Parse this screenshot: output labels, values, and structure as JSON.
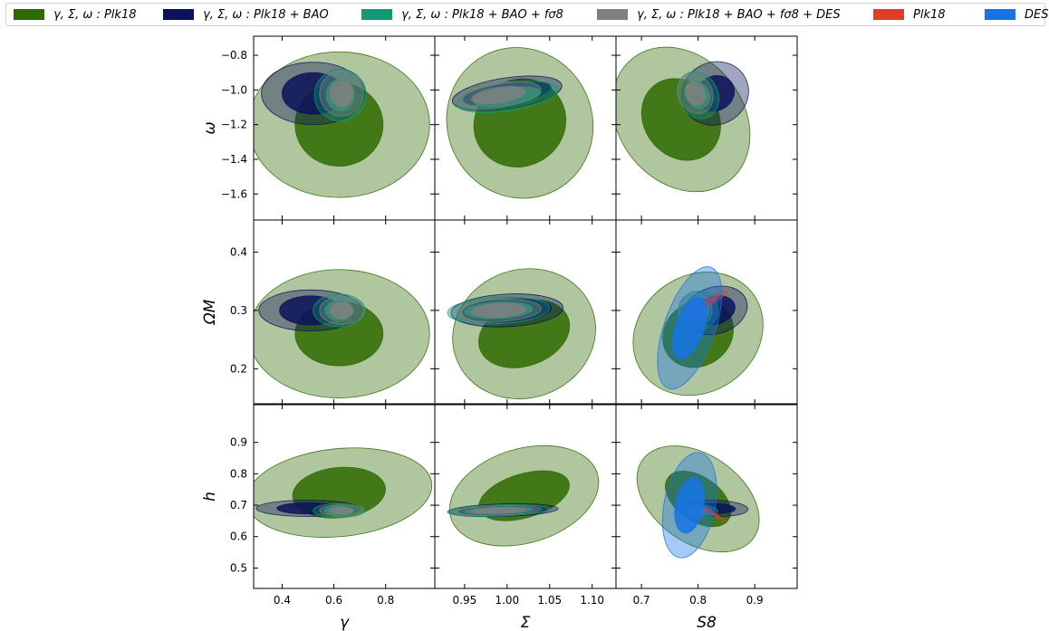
{
  "legend": {
    "items": [
      {
        "label": "γ, Σ, ω :  Plk18",
        "color": "#2f6a00"
      },
      {
        "label": "γ, Σ, ω :  Plk18 + BAO",
        "color": "#0b1259"
      },
      {
        "label": "γ, Σ, ω :  Plk18 + BAO + fσ8",
        "color": "#0f9a73"
      },
      {
        "label": "γ, Σ, ω :  Plk18 + BAO + fσ8 + DES",
        "color": "#808080"
      },
      {
        "label": "Plk18",
        "color": "#e03c28"
      },
      {
        "label": "DES",
        "color": "#1574e6"
      }
    ]
  },
  "chart_data": {
    "type": "contour",
    "columns": [
      {
        "xlabel": "γ",
        "xlim": [
          0.29,
          0.99
        ],
        "ticks": [
          0.4,
          0.6,
          0.8
        ],
        "tick_labels": [
          "0.4",
          "0.6",
          "0.8"
        ]
      },
      {
        "xlabel": "Σ",
        "xlim": [
          0.915,
          1.128
        ],
        "ticks": [
          0.95,
          1.0,
          1.05,
          1.1
        ],
        "tick_labels": [
          "0.95",
          "1.00",
          "1.05",
          "1.10"
        ]
      },
      {
        "xlabel": "S8",
        "xlim": [
          0.655,
          0.975
        ],
        "ticks": [
          0.7,
          0.8,
          0.9
        ],
        "tick_labels": [
          "0.7",
          "0.8",
          "0.9"
        ]
      }
    ],
    "rows": [
      {
        "ylabel": "ω",
        "ylim": [
          -1.75,
          -0.69
        ],
        "ticks": [
          -1.6,
          -1.4,
          -1.2,
          -1.0,
          -0.8
        ],
        "tick_labels": [
          "−1.6",
          "−1.4",
          "−1.2",
          "−1.0",
          "−0.8"
        ]
      },
      {
        "ylabel": "ΩM",
        "ylim": [
          0.14,
          0.455
        ],
        "ticks": [
          0.2,
          0.3,
          0.4
        ],
        "tick_labels": [
          "0.2",
          "0.3",
          "0.4"
        ]
      },
      {
        "ylabel": "h",
        "ylim": [
          0.435,
          1.02
        ],
        "ticks": [
          0.5,
          0.6,
          0.7,
          0.8,
          0.9
        ],
        "tick_labels": [
          "0.5",
          "0.6",
          "0.7",
          "0.8",
          "0.9"
        ]
      }
    ],
    "series": [
      {
        "name": "γ, Σ, ω :  Plk18",
        "color": "#2f6a00",
        "ellipses": {
          "0-0": {
            "cx": 0.62,
            "cy": -1.2,
            "rx": [
              0.35,
              0.17
            ],
            "ry": [
              0.42,
              0.24
            ],
            "rot": 0
          },
          "0-1": {
            "cx": 1.015,
            "cy": -1.19,
            "rx": [
              0.085,
              0.055
            ],
            "ry": [
              0.44,
              0.25
            ],
            "rot": 0.55
          },
          "0-2": {
            "cx": 0.77,
            "cy": -1.17,
            "rx": [
              0.11,
              0.065
            ],
            "ry": [
              0.45,
              0.25
            ],
            "rot": 0.8
          },
          "1-0": {
            "cx": 0.62,
            "cy": 0.26,
            "rx": [
              0.35,
              0.17
            ],
            "ry": [
              0.11,
              0.055
            ],
            "rot": 0
          },
          "1-1": {
            "cx": 1.02,
            "cy": 0.26,
            "rx": [
              0.085,
              0.055
            ],
            "ry": [
              0.11,
              0.055
            ],
            "rot": 0.35
          },
          "1-2": {
            "cx": 0.8,
            "cy": 0.26,
            "rx": [
              0.12,
              0.065
            ],
            "ry": [
              0.1,
              0.055
            ],
            "rot": 0.7
          },
          "2-0": {
            "cx": 0.62,
            "cy": 0.74,
            "rx": [
              0.36,
              0.18
            ],
            "ry": [
              0.14,
              0.08
            ],
            "rot": 0.1
          },
          "2-1": {
            "cx": 1.02,
            "cy": 0.73,
            "rx": [
              0.09,
              0.055
            ],
            "ry": [
              0.15,
              0.07
            ],
            "rot": 0.3
          },
          "2-2": {
            "cx": 0.8,
            "cy": 0.72,
            "rx": [
              0.12,
              0.065
            ],
            "ry": [
              0.14,
              0.07
            ],
            "rot": -0.7
          }
        }
      },
      {
        "name": "γ, Σ, ω :  Plk18 + BAO",
        "color": "#0b1259",
        "ellipses": {
          "0-0": {
            "cx": 0.52,
            "cy": -1.02,
            "rx": [
              0.2,
              0.12
            ],
            "ry": [
              0.18,
              0.12
            ],
            "rot": 0
          },
          "0-1": {
            "cx": 1.0,
            "cy": -1.02,
            "rx": [
              0.065,
              0.052
            ],
            "ry": [
              0.09,
              0.06
            ],
            "rot": 0.15
          },
          "0-2": {
            "cx": 0.83,
            "cy": -1.02,
            "rx": [
              0.06,
              0.035
            ],
            "ry": [
              0.18,
              0.1
            ],
            "rot": 0.5
          },
          "1-0": {
            "cx": 0.51,
            "cy": 0.3,
            "rx": [
              0.2,
              0.12
            ],
            "ry": [
              0.035,
              0.025
            ],
            "rot": 0
          },
          "1-1": {
            "cx": 1.0,
            "cy": 0.3,
            "rx": [
              0.066,
              0.052
            ],
            "ry": [
              0.028,
              0.02
            ],
            "rot": 0.05
          },
          "1-2": {
            "cx": 0.83,
            "cy": 0.3,
            "rx": [
              0.058,
              0.036
            ],
            "ry": [
              0.04,
              0.024
            ],
            "rot": 0.3
          },
          "2-0": {
            "cx": 0.5,
            "cy": 0.69,
            "rx": [
              0.2,
              0.12
            ],
            "ry": [
              0.026,
              0.018
            ],
            "rot": 0
          },
          "2-1": {
            "cx": 0.995,
            "cy": 0.684,
            "rx": [
              0.065,
              0.052
            ],
            "ry": [
              0.02,
              0.014
            ],
            "rot": 0.03
          },
          "2-2": {
            "cx": 0.83,
            "cy": 0.69,
            "rx": [
              0.058,
              0.036
            ],
            "ry": [
              0.026,
              0.016
            ],
            "rot": -0.03
          }
        }
      },
      {
        "name": "γ, Σ, ω :  Plk18 + BAO + fσ8",
        "color": "#0f9a73",
        "ellipses": {
          "0-0": {
            "cx": 0.625,
            "cy": -1.03,
            "rx": [
              0.1,
              0.055
            ],
            "ry": [
              0.15,
              0.09
            ],
            "rot": 0
          },
          "0-1": {
            "cx": 1.0,
            "cy": -1.04,
            "rx": [
              0.06,
              0.04
            ],
            "ry": [
              0.08,
              0.05
            ],
            "rot": 0.15
          },
          "0-2": {
            "cx": 0.8,
            "cy": -1.03,
            "rx": [
              0.035,
              0.02
            ],
            "ry": [
              0.14,
              0.08
            ],
            "rot": 0.5
          },
          "1-0": {
            "cx": 0.62,
            "cy": 0.3,
            "rx": [
              0.1,
              0.055
            ],
            "ry": [
              0.028,
              0.017
            ],
            "rot": 0
          },
          "1-1": {
            "cx": 0.99,
            "cy": 0.3,
            "rx": [
              0.06,
              0.04
            ],
            "ry": [
              0.023,
              0.014
            ],
            "rot": 0.05
          },
          "1-2": {
            "cx": 0.8,
            "cy": 0.3,
            "rx": [
              0.035,
              0.02
            ],
            "ry": [
              0.033,
              0.018
            ],
            "rot": 0.3
          },
          "2-0": {
            "cx": 0.62,
            "cy": 0.683,
            "rx": [
              0.1,
              0.055
            ],
            "ry": [
              0.022,
              0.014
            ],
            "rot": 0
          },
          "2-1": {
            "cx": 0.99,
            "cy": 0.683,
            "rx": [
              0.06,
              0.04
            ],
            "ry": [
              0.018,
              0.011
            ],
            "rot": 0.03
          },
          "2-2": {
            "cx": 0.8,
            "cy": 0.683,
            "rx": [
              0.035,
              0.02
            ],
            "ry": [
              0.02,
              0.012
            ],
            "rot": -0.05
          }
        }
      },
      {
        "name": "γ, Σ, ω :  Plk18 + BAO + fσ8 + DES",
        "color": "#808080",
        "ellipses": {
          "0-0": {
            "cx": 0.63,
            "cy": -1.02,
            "rx": [
              0.085,
              0.045
            ],
            "ry": [
              0.13,
              0.075
            ],
            "rot": 0
          },
          "0-1": {
            "cx": 0.99,
            "cy": -1.03,
            "rx": [
              0.05,
              0.032
            ],
            "ry": [
              0.07,
              0.045
            ],
            "rot": 0.15
          },
          "0-2": {
            "cx": 0.795,
            "cy": -1.02,
            "rx": [
              0.03,
              0.017
            ],
            "ry": [
              0.12,
              0.07
            ],
            "rot": 0.5
          },
          "1-0": {
            "cx": 0.63,
            "cy": 0.3,
            "rx": [
              0.085,
              0.045
            ],
            "ry": [
              0.024,
              0.014
            ],
            "rot": 0
          },
          "1-1": {
            "cx": 0.99,
            "cy": 0.3,
            "rx": [
              0.05,
              0.032
            ],
            "ry": [
              0.019,
              0.012
            ],
            "rot": 0.05
          },
          "1-2": {
            "cx": 0.795,
            "cy": 0.3,
            "rx": [
              0.03,
              0.017
            ],
            "ry": [
              0.028,
              0.016
            ],
            "rot": 0.3
          },
          "2-0": {
            "cx": 0.63,
            "cy": 0.683,
            "rx": [
              0.085,
              0.045
            ],
            "ry": [
              0.018,
              0.011
            ],
            "rot": 0
          },
          "2-1": {
            "cx": 0.99,
            "cy": 0.683,
            "rx": [
              0.05,
              0.032
            ],
            "ry": [
              0.015,
              0.009
            ],
            "rot": 0.03
          },
          "2-2": {
            "cx": 0.795,
            "cy": 0.683,
            "rx": [
              0.03,
              0.017
            ],
            "ry": [
              0.017,
              0.01
            ],
            "rot": -0.05
          }
        }
      },
      {
        "name": "Plk18",
        "color": "#e03c28",
        "ellipses": {
          "1-2": {
            "cx": 0.82,
            "cy": 0.315,
            "rx": [
              0.035,
              0.02
            ],
            "ry": [
              0.006,
              0.0035
            ],
            "rot": 0.6
          },
          "2-2": {
            "cx": 0.82,
            "cy": 0.68,
            "rx": [
              0.035,
              0.02
            ],
            "ry": [
              0.004,
              0.0025
            ],
            "rot": -0.6
          }
        }
      },
      {
        "name": "DES",
        "color": "#1574e6",
        "ellipses": {
          "1-2": {
            "cx": 0.785,
            "cy": 0.27,
            "rx": [
              0.045,
              0.025
            ],
            "ry": [
              0.11,
              0.055
            ],
            "rot": -0.35
          },
          "2-2": {
            "cx": 0.785,
            "cy": 0.7,
            "rx": [
              0.045,
              0.025
            ],
            "ry": [
              0.17,
              0.09
            ],
            "rot": -0.2
          }
        }
      }
    ]
  }
}
